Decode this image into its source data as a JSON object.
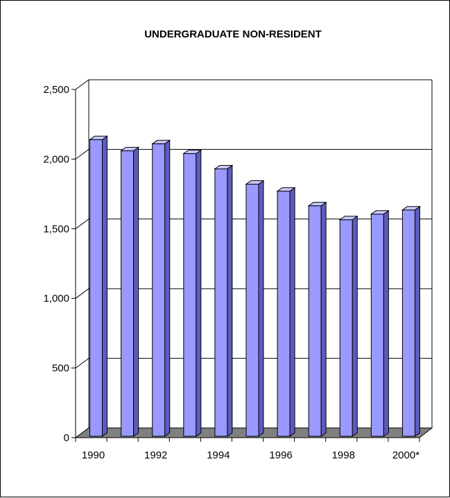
{
  "chart_data": {
    "type": "bar",
    "title": "UNDERGRADUATE NON-RESIDENT",
    "xlabel": "",
    "ylabel": "",
    "categories": [
      "1990",
      "1991",
      "1992",
      "1993",
      "1994",
      "1995",
      "1996",
      "1997",
      "1998",
      "1999",
      "2000*"
    ],
    "x_tick_labels": [
      "1990",
      "1992",
      "1994",
      "1996",
      "1998",
      "2000*"
    ],
    "y_tick_labels": [
      "0",
      "500",
      "1,000",
      "1,500",
      "2,000",
      "2,500"
    ],
    "y_ticks": [
      0,
      500,
      1000,
      1500,
      2000,
      2500
    ],
    "values": [
      2140,
      2060,
      2110,
      2040,
      1930,
      1820,
      1770,
      1665,
      1565,
      1605,
      1635
    ],
    "ylim": [
      0,
      2500
    ],
    "grid": true,
    "three_d": true,
    "colors": {
      "bar_front": "#9999ff",
      "bar_side": "#5c5cbf",
      "bar_top": "#c8c8ff",
      "floor": "#808080",
      "grid": "#000000"
    }
  }
}
